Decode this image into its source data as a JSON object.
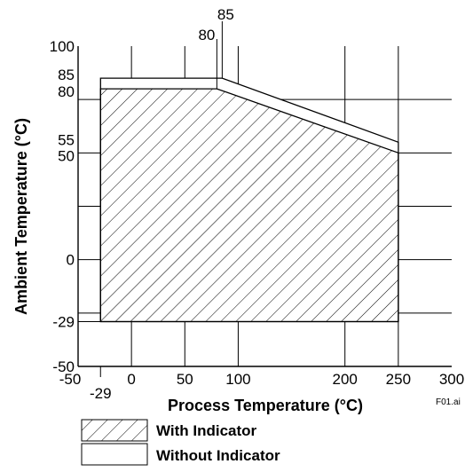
{
  "chart_data": {
    "type": "area",
    "title": "",
    "xlabel": "Process Temperature (°C)",
    "ylabel": "Ambient Temperature (°C)",
    "xlim": [
      -50,
      300
    ],
    "ylim": [
      -50,
      100
    ],
    "grid": true,
    "file_label": "F01.ai",
    "x_ticks": [
      {
        "value": -50,
        "label": "-50",
        "row": 0
      },
      {
        "value": -29,
        "label": "-29",
        "row": 1
      },
      {
        "value": 0,
        "label": "0",
        "row": 0
      },
      {
        "value": 50,
        "label": "50",
        "row": 0
      },
      {
        "value": 100,
        "label": "100",
        "row": 0
      },
      {
        "value": 200,
        "label": "200",
        "row": 0
      },
      {
        "value": 250,
        "label": "250",
        "row": 0
      },
      {
        "value": 300,
        "label": "300",
        "row": 0
      }
    ],
    "x_top_ticks": [
      {
        "value": 80,
        "label": "80"
      },
      {
        "value": 85,
        "label": "85"
      }
    ],
    "y_ticks": [
      {
        "value": 100,
        "label": "100"
      },
      {
        "value": 85,
        "label": "85"
      },
      {
        "value": 80,
        "label": "80"
      },
      {
        "value": 55,
        "label": "55"
      },
      {
        "value": 50,
        "label": "50"
      },
      {
        "value": 0,
        "label": "0"
      },
      {
        "value": -29,
        "label": "-29"
      },
      {
        "value": -50,
        "label": "-50"
      }
    ],
    "x_grid": [
      0,
      50,
      100,
      200,
      250
    ],
    "y_grid": [
      75,
      50,
      25,
      0,
      -25
    ],
    "series": [
      {
        "name": "Without Indicator",
        "fill": "none",
        "points": [
          [
            -29,
            -29
          ],
          [
            -29,
            85
          ],
          [
            85,
            85
          ],
          [
            250,
            55
          ],
          [
            250,
            -29
          ]
        ]
      },
      {
        "name": "With Indicator",
        "fill": "hatch",
        "points": [
          [
            -29,
            -29
          ],
          [
            -29,
            80
          ],
          [
            80,
            80
          ],
          [
            250,
            50
          ],
          [
            250,
            -29
          ]
        ]
      }
    ]
  },
  "legend": {
    "with_indicator": "With Indicator",
    "without_indicator": "Without Indicator"
  }
}
